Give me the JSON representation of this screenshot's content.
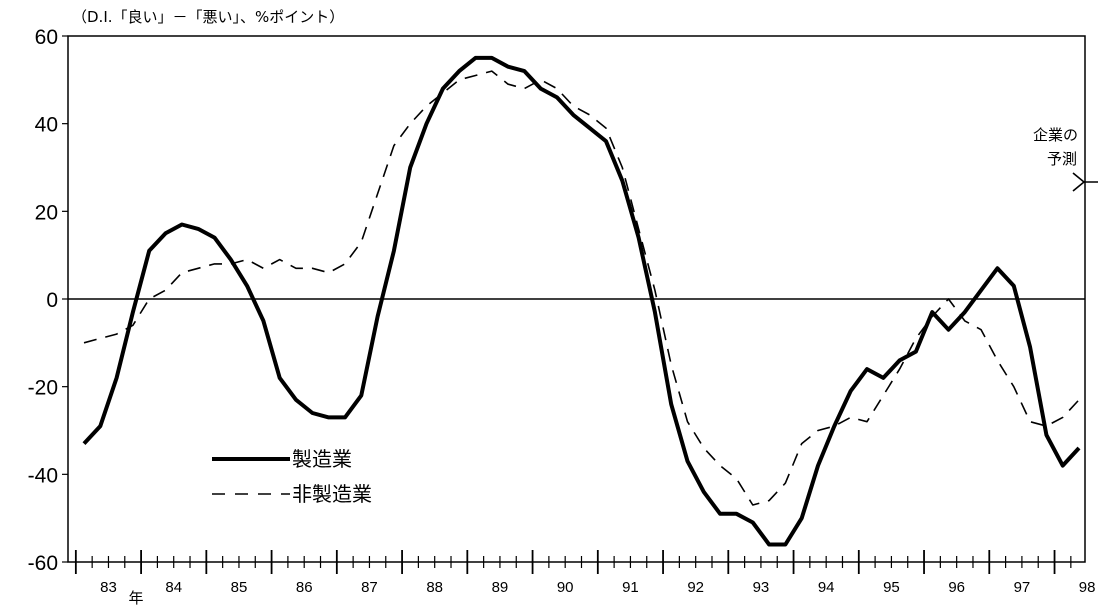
{
  "chart_data": {
    "type": "line",
    "unit_label": "（D.I.「良い」－「悪い」、%ポイント）",
    "year_unit": "年",
    "ylim": [
      -60,
      60
    ],
    "yticks": [
      60,
      40,
      20,
      0,
      -20,
      -40,
      -60
    ],
    "x_year_labels": [
      "83",
      "84",
      "85",
      "86",
      "87",
      "88",
      "89",
      "90",
      "91",
      "92",
      "93",
      "94",
      "95",
      "96",
      "97",
      "98"
    ],
    "x_start_year": 83,
    "x_end_year": 99,
    "forecast_label_line1": "企業の",
    "forecast_label_line2": "予測",
    "forecast_start": 98.75,
    "series": [
      {
        "name": "製造業",
        "style": "solid",
        "color": "#000000",
        "points": [
          [
            83.0,
            -33
          ],
          [
            83.25,
            -29
          ],
          [
            83.5,
            -18
          ],
          [
            83.75,
            -3
          ],
          [
            84.0,
            11
          ],
          [
            84.25,
            15
          ],
          [
            84.5,
            17
          ],
          [
            84.75,
            16
          ],
          [
            85.0,
            14
          ],
          [
            85.25,
            9
          ],
          [
            85.5,
            3
          ],
          [
            85.75,
            -5
          ],
          [
            86.0,
            -18
          ],
          [
            86.25,
            -23
          ],
          [
            86.5,
            -26
          ],
          [
            86.75,
            -27
          ],
          [
            87.0,
            -27
          ],
          [
            87.25,
            -22
          ],
          [
            87.5,
            -4
          ],
          [
            87.75,
            11
          ],
          [
            88.0,
            30
          ],
          [
            88.25,
            40
          ],
          [
            88.5,
            48
          ],
          [
            88.75,
            52
          ],
          [
            89.0,
            55
          ],
          [
            89.25,
            55
          ],
          [
            89.5,
            53
          ],
          [
            89.75,
            52
          ],
          [
            90.0,
            48
          ],
          [
            90.25,
            46
          ],
          [
            90.5,
            42
          ],
          [
            90.75,
            39
          ],
          [
            91.0,
            36
          ],
          [
            91.25,
            27
          ],
          [
            91.5,
            14
          ],
          [
            91.75,
            -3
          ],
          [
            92.0,
            -24
          ],
          [
            92.25,
            -37
          ],
          [
            92.5,
            -44
          ],
          [
            92.75,
            -49
          ],
          [
            93.0,
            -49
          ],
          [
            93.25,
            -51
          ],
          [
            93.5,
            -56
          ],
          [
            93.75,
            -56
          ],
          [
            94.0,
            -50
          ],
          [
            94.25,
            -38
          ],
          [
            94.5,
            -29
          ],
          [
            94.75,
            -21
          ],
          [
            95.0,
            -16
          ],
          [
            95.25,
            -18
          ],
          [
            95.5,
            -14
          ],
          [
            95.75,
            -12
          ],
          [
            96.0,
            -3
          ],
          [
            96.25,
            -7
          ],
          [
            96.5,
            -3
          ],
          [
            96.75,
            2
          ],
          [
            97.0,
            7
          ],
          [
            97.25,
            3
          ],
          [
            97.5,
            -11
          ],
          [
            97.75,
            -31
          ],
          [
            98.0,
            -38
          ],
          [
            98.25,
            -34
          ]
        ]
      },
      {
        "name": "非製造業",
        "style": "dashed",
        "color": "#000000",
        "points": [
          [
            83.0,
            -10
          ],
          [
            83.25,
            -9
          ],
          [
            83.5,
            -8
          ],
          [
            83.75,
            -6
          ],
          [
            84.0,
            0
          ],
          [
            84.25,
            2
          ],
          [
            84.5,
            6
          ],
          [
            84.75,
            7
          ],
          [
            85.0,
            8
          ],
          [
            85.25,
            8
          ],
          [
            85.5,
            9
          ],
          [
            85.75,
            7
          ],
          [
            86.0,
            9
          ],
          [
            86.25,
            7
          ],
          [
            86.5,
            7
          ],
          [
            86.75,
            6
          ],
          [
            87.0,
            8
          ],
          [
            87.25,
            13
          ],
          [
            87.5,
            24
          ],
          [
            87.75,
            35
          ],
          [
            88.0,
            40
          ],
          [
            88.25,
            44
          ],
          [
            88.5,
            47
          ],
          [
            88.75,
            50
          ],
          [
            89.0,
            51
          ],
          [
            89.25,
            52
          ],
          [
            89.5,
            49
          ],
          [
            89.75,
            48
          ],
          [
            90.0,
            50
          ],
          [
            90.25,
            48
          ],
          [
            90.5,
            44
          ],
          [
            90.75,
            42
          ],
          [
            91.0,
            39
          ],
          [
            91.25,
            30
          ],
          [
            91.5,
            16
          ],
          [
            91.75,
            2
          ],
          [
            92.0,
            -15
          ],
          [
            92.25,
            -28
          ],
          [
            92.5,
            -34
          ],
          [
            92.75,
            -38
          ],
          [
            93.0,
            -41
          ],
          [
            93.25,
            -47
          ],
          [
            93.5,
            -46
          ],
          [
            93.75,
            -42
          ],
          [
            94.0,
            -33
          ],
          [
            94.25,
            -30
          ],
          [
            94.5,
            -29
          ],
          [
            94.75,
            -27
          ],
          [
            95.0,
            -28
          ],
          [
            95.25,
            -22
          ],
          [
            95.5,
            -16
          ],
          [
            95.75,
            -9
          ],
          [
            96.0,
            -4
          ],
          [
            96.25,
            0
          ],
          [
            96.5,
            -5
          ],
          [
            96.75,
            -7
          ],
          [
            97.0,
            -14
          ],
          [
            97.25,
            -20
          ],
          [
            97.5,
            -28
          ],
          [
            97.75,
            -29
          ],
          [
            98.0,
            -27
          ],
          [
            98.25,
            -23
          ]
        ]
      }
    ]
  }
}
